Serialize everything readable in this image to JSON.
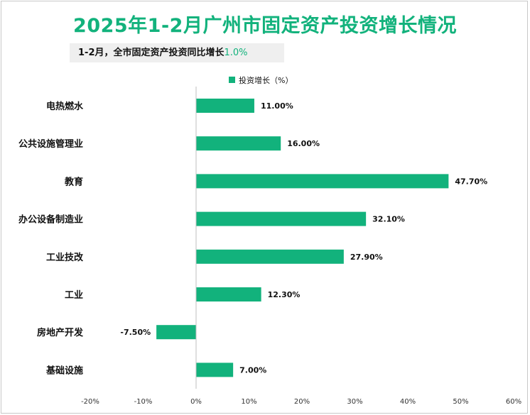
{
  "title": "2025年1-2月广州市固定资产投资增长情况",
  "subtitle": {
    "text": "1-2月，全市固定资产投资同比增长",
    "highlight": "1.0%"
  },
  "colors": {
    "bar": "#12b27c",
    "title": "#12b27c"
  },
  "chart_data": {
    "type": "bar",
    "orientation": "horizontal",
    "categories": [
      "电热燃水",
      "公共设施管理业",
      "教育",
      "办公设备制造业",
      "工业技改",
      "工业",
      "房地产开发",
      "基础设施"
    ],
    "series": [
      {
        "name": "投资增长（%）",
        "values": [
          11.0,
          16.0,
          47.7,
          32.1,
          27.9,
          12.3,
          -7.5,
          7.0
        ],
        "labels": [
          "11.00%",
          "16.00%",
          "47.70%",
          "32.10%",
          "27.90%",
          "12.30%",
          "-7.50%",
          "7.00%"
        ]
      }
    ],
    "xlim": [
      -20,
      60
    ],
    "xticks": [
      -20,
      -10,
      0,
      10,
      20,
      30,
      40,
      50,
      60
    ],
    "xtick_labels": [
      "-20%",
      "-10%",
      "0%",
      "10%",
      "20%",
      "30%",
      "40%",
      "50%",
      "60%"
    ],
    "grid": false,
    "legend_position": "top"
  }
}
